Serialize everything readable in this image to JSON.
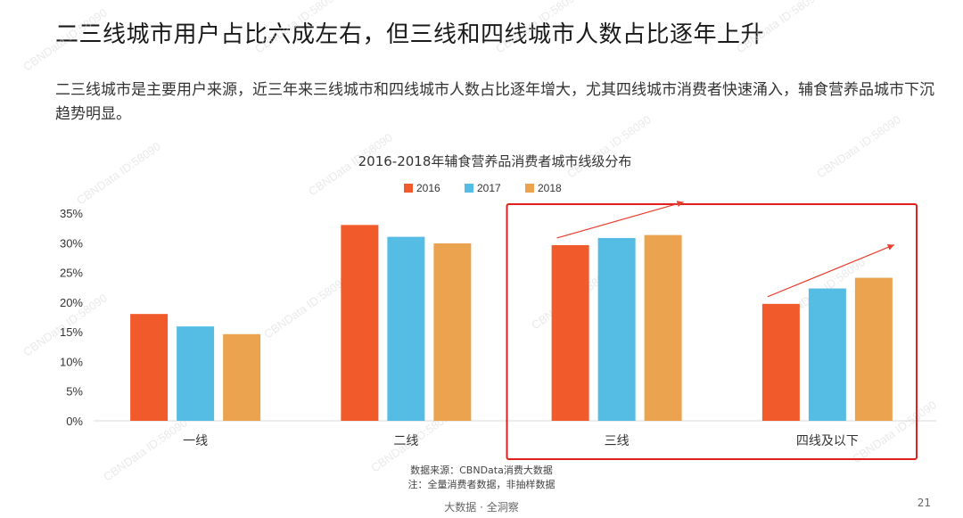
{
  "slide": {
    "title": "二三线城市用户占比六成左右，但三线和四线城市人数占比逐年上升",
    "description": "二三线城市是主要用户来源，近三年来三线城市和四线城市人数占比逐年增大，尤其四线城市消费者快速涌入，辅食营养品城市下沉趋势明显。",
    "source_note": "数据来源：CBNData消费大数据",
    "data_note": "注：全量消费者数据，非抽样数据",
    "footer_brand": "大数据 · 全洞察",
    "page_number": "21",
    "watermark": "CBNData ID:58090"
  },
  "chart_data": {
    "type": "bar",
    "title": "2016-2018年辅食营养品消费者城市线级分布",
    "categories": [
      "一线",
      "二线",
      "三线",
      "四线及以下"
    ],
    "series": [
      {
        "name": "2016",
        "color": "#f15a2b",
        "values": [
          18,
          33,
          29.6,
          19.7
        ]
      },
      {
        "name": "2017",
        "color": "#55bce3",
        "values": [
          15.9,
          31,
          30.8,
          22.3
        ]
      },
      {
        "name": "2018",
        "color": "#eba34f",
        "values": [
          14.6,
          29.9,
          31.3,
          24.1
        ]
      }
    ],
    "ylim": [
      0,
      35
    ],
    "yticks": [
      "0%",
      "5%",
      "10%",
      "15%",
      "20%",
      "25%",
      "30%",
      "35%"
    ],
    "legend_position": "top-center",
    "highlight": {
      "categories": [
        "三线",
        "四线及以下"
      ],
      "color": "#e0201c"
    },
    "trend_arrow_color": "#e8402e"
  }
}
